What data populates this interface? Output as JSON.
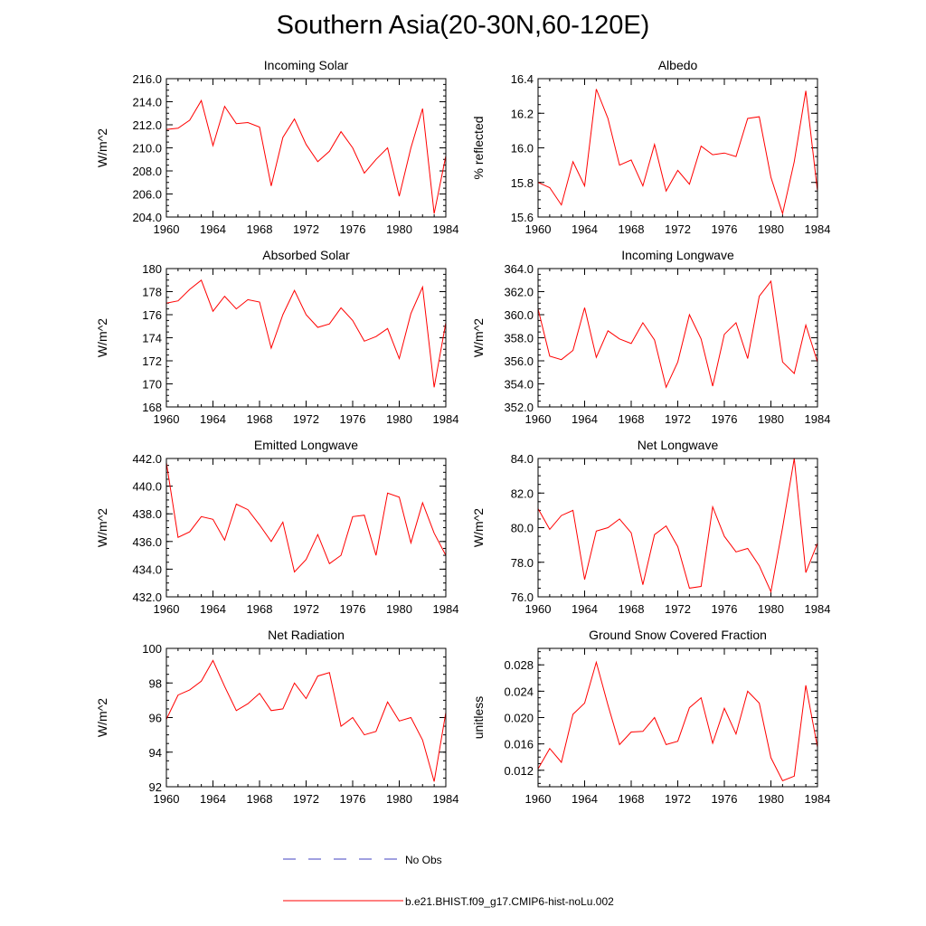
{
  "title": "Southern Asia(20-30N,60-120E)",
  "colors": {
    "model": "#ff0000",
    "obs": "#4040c0",
    "axis": "#000000",
    "background": "#ffffff"
  },
  "legend": {
    "obs_label": "No Obs",
    "model_label": "b.e21.BHIST.f09_g17.CMIP6-hist-noLu.002"
  },
  "chart_data": [
    {
      "type": "line",
      "title": "Incoming Solar",
      "ylabel": "W/m^2",
      "x": [
        1960,
        1961,
        1962,
        1963,
        1964,
        1965,
        1966,
        1967,
        1968,
        1969,
        1970,
        1971,
        1972,
        1973,
        1974,
        1975,
        1976,
        1977,
        1978,
        1979,
        1980,
        1981,
        1982,
        1983,
        1984
      ],
      "values": [
        211.6,
        211.7,
        212.4,
        214.1,
        210.2,
        213.6,
        212.1,
        212.2,
        211.8,
        206.7,
        210.9,
        212.5,
        210.3,
        208.8,
        209.7,
        211.4,
        210.0,
        207.8,
        209.0,
        210.0,
        205.8,
        210.0,
        213.4,
        204.3,
        209.3
      ],
      "xlim": [
        1960,
        1984
      ],
      "ylim": [
        204.0,
        216.0
      ],
      "xticks": [
        "1960",
        "1964",
        "1968",
        "1972",
        "1976",
        "1980",
        "1984"
      ],
      "yticks": [
        "204.0",
        "206.0",
        "208.0",
        "210.0",
        "212.0",
        "214.0",
        "216.0"
      ]
    },
    {
      "type": "line",
      "title": "Albedo",
      "ylabel": "% reflected",
      "x": [
        1960,
        1961,
        1962,
        1963,
        1964,
        1965,
        1966,
        1967,
        1968,
        1969,
        1970,
        1971,
        1972,
        1973,
        1974,
        1975,
        1976,
        1977,
        1978,
        1979,
        1980,
        1981,
        1982,
        1983,
        1984
      ],
      "values": [
        15.8,
        15.77,
        15.67,
        15.92,
        15.78,
        16.34,
        16.17,
        15.9,
        15.93,
        15.78,
        16.02,
        15.75,
        15.87,
        15.79,
        16.01,
        15.96,
        15.97,
        15.95,
        16.17,
        16.18,
        15.83,
        15.62,
        15.92,
        16.33,
        15.75
      ],
      "xlim": [
        1960,
        1984
      ],
      "ylim": [
        15.6,
        16.4
      ],
      "xticks": [
        "1960",
        "1964",
        "1968",
        "1972",
        "1976",
        "1980",
        "1984"
      ],
      "yticks": [
        "15.6",
        "15.8",
        "16.0",
        "16.2",
        "16.4"
      ]
    },
    {
      "type": "line",
      "title": "Absorbed Solar",
      "ylabel": "W/m^2",
      "x": [
        1960,
        1961,
        1962,
        1963,
        1964,
        1965,
        1966,
        1967,
        1968,
        1969,
        1970,
        1971,
        1972,
        1973,
        1974,
        1975,
        1976,
        1977,
        1978,
        1979,
        1980,
        1981,
        1982,
        1983,
        1984
      ],
      "values": [
        177.0,
        177.2,
        178.2,
        179.0,
        176.3,
        177.6,
        176.5,
        177.3,
        177.1,
        173.1,
        176.0,
        178.1,
        176.0,
        174.9,
        175.2,
        176.6,
        175.5,
        173.7,
        174.1,
        174.8,
        172.2,
        176.1,
        178.4,
        169.7,
        175.3
      ],
      "xlim": [
        1960,
        1984
      ],
      "ylim": [
        168,
        180
      ],
      "xticks": [
        "1960",
        "1964",
        "1968",
        "1972",
        "1976",
        "1980",
        "1984"
      ],
      "yticks": [
        "168",
        "170",
        "172",
        "174",
        "176",
        "178",
        "180"
      ]
    },
    {
      "type": "line",
      "title": "Incoming Longwave",
      "ylabel": "W/m^2",
      "x": [
        1960,
        1961,
        1962,
        1963,
        1964,
        1965,
        1966,
        1967,
        1968,
        1969,
        1970,
        1971,
        1972,
        1973,
        1974,
        1975,
        1976,
        1977,
        1978,
        1979,
        1980,
        1981,
        1982,
        1983,
        1984
      ],
      "values": [
        360.5,
        356.4,
        356.1,
        356.9,
        360.6,
        356.3,
        358.6,
        357.9,
        357.5,
        359.3,
        357.8,
        353.7,
        355.9,
        360.0,
        357.9,
        353.8,
        358.3,
        359.3,
        356.2,
        361.6,
        362.9,
        355.9,
        354.9,
        359.1,
        355.9
      ],
      "xlim": [
        1960,
        1984
      ],
      "ylim": [
        352.0,
        364.0
      ],
      "xticks": [
        "1960",
        "1964",
        "1968",
        "1972",
        "1976",
        "1980",
        "1984"
      ],
      "yticks": [
        "352.0",
        "354.0",
        "356.0",
        "358.0",
        "360.0",
        "362.0",
        "364.0"
      ]
    },
    {
      "type": "line",
      "title": "Emitted Longwave",
      "ylabel": "W/m^2",
      "x": [
        1960,
        1961,
        1962,
        1963,
        1964,
        1965,
        1966,
        1967,
        1968,
        1969,
        1970,
        1971,
        1972,
        1973,
        1974,
        1975,
        1976,
        1977,
        1978,
        1979,
        1980,
        1981,
        1982,
        1983,
        1984
      ],
      "values": [
        441.7,
        436.3,
        436.7,
        437.8,
        437.6,
        436.1,
        438.7,
        438.3,
        437.2,
        436.0,
        437.4,
        433.8,
        434.7,
        436.5,
        434.4,
        435.0,
        437.8,
        437.9,
        435.0,
        439.5,
        439.2,
        435.9,
        438.8,
        436.6,
        435.0
      ],
      "xlim": [
        1960,
        1984
      ],
      "ylim": [
        432.0,
        442.0
      ],
      "xticks": [
        "1960",
        "1964",
        "1968",
        "1972",
        "1976",
        "1980",
        "1984"
      ],
      "yticks": [
        "432.0",
        "434.0",
        "436.0",
        "438.0",
        "440.0",
        "442.0"
      ]
    },
    {
      "type": "line",
      "title": "Net Longwave",
      "ylabel": "W/m^2",
      "x": [
        1960,
        1961,
        1962,
        1963,
        1964,
        1965,
        1966,
        1967,
        1968,
        1969,
        1970,
        1971,
        1972,
        1973,
        1974,
        1975,
        1976,
        1977,
        1978,
        1979,
        1980,
        1981,
        1982,
        1983,
        1984
      ],
      "values": [
        81.1,
        79.9,
        80.7,
        81.0,
        77.0,
        79.8,
        80.0,
        80.5,
        79.7,
        76.7,
        79.6,
        80.1,
        78.9,
        76.5,
        76.6,
        81.2,
        79.5,
        78.6,
        78.8,
        77.8,
        76.3,
        80.0,
        84.0,
        77.4,
        79.1
      ],
      "xlim": [
        1960,
        1984
      ],
      "ylim": [
        76.0,
        84.0
      ],
      "xticks": [
        "1960",
        "1964",
        "1968",
        "1972",
        "1976",
        "1980",
        "1984"
      ],
      "yticks": [
        "76.0",
        "78.0",
        "80.0",
        "82.0",
        "84.0"
      ]
    },
    {
      "type": "line",
      "title": "Net Radiation",
      "ylabel": "W/m^2",
      "x": [
        1960,
        1961,
        1962,
        1963,
        1964,
        1965,
        1966,
        1967,
        1968,
        1969,
        1970,
        1971,
        1972,
        1973,
        1974,
        1975,
        1976,
        1977,
        1978,
        1979,
        1980,
        1981,
        1982,
        1983,
        1984
      ],
      "values": [
        95.9,
        97.3,
        97.6,
        98.1,
        99.3,
        97.8,
        96.4,
        96.8,
        97.4,
        96.4,
        96.5,
        98.0,
        97.1,
        98.4,
        98.6,
        95.5,
        96.0,
        95.0,
        95.2,
        96.9,
        95.8,
        96.0,
        94.7,
        92.3,
        96.3
      ],
      "xlim": [
        1960,
        1984
      ],
      "ylim": [
        92,
        100
      ],
      "xticks": [
        "1960",
        "1964",
        "1968",
        "1972",
        "1976",
        "1980",
        "1984"
      ],
      "yticks": [
        "92",
        "94",
        "96",
        "98",
        "100"
      ]
    },
    {
      "type": "line",
      "title": "Ground Snow Covered Fraction",
      "ylabel": "unitless",
      "x": [
        1960,
        1961,
        1962,
        1963,
        1964,
        1965,
        1966,
        1967,
        1968,
        1969,
        1970,
        1971,
        1972,
        1973,
        1974,
        1975,
        1976,
        1977,
        1978,
        1979,
        1980,
        1981,
        1982,
        1983,
        1984
      ],
      "values": [
        0.0122,
        0.0153,
        0.0132,
        0.0205,
        0.0222,
        0.0284,
        0.0219,
        0.0159,
        0.0178,
        0.0179,
        0.02,
        0.0159,
        0.0164,
        0.0215,
        0.023,
        0.0161,
        0.0214,
        0.0175,
        0.024,
        0.0222,
        0.0139,
        0.0104,
        0.0111,
        0.0249,
        0.0155
      ],
      "xlim": [
        1960,
        1984
      ],
      "ylim": [
        0.0095,
        0.0305
      ],
      "xticks": [
        "1960",
        "1964",
        "1968",
        "1972",
        "1976",
        "1980",
        "1984"
      ],
      "yticks": [
        "0.012",
        "0.016",
        "0.020",
        "0.024",
        "0.028"
      ]
    }
  ]
}
